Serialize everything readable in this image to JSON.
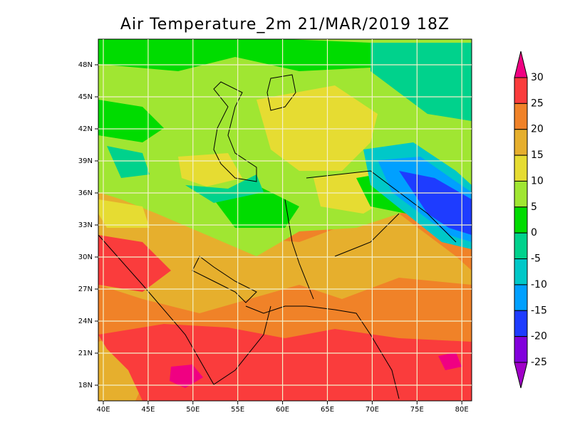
{
  "title": "Air Temperature_2m 21/MAR/2019 18Z",
  "lat_labels": [
    "48N",
    "45N",
    "42N",
    "39N",
    "36N",
    "33N",
    "30N",
    "27N",
    "24N",
    "21N",
    "18N"
  ],
  "lon_labels": [
    "40E",
    "45E",
    "50E",
    "55E",
    "60E",
    "65E",
    "70E",
    "75E",
    "80E"
  ],
  "colorbar": {
    "labels": [
      30,
      25,
      20,
      15,
      10,
      5,
      0,
      -5,
      -10,
      -15,
      -20,
      -25
    ],
    "colors": [
      "#f00082",
      "#fa3c3c",
      "#f08228",
      "#e6af2d",
      "#e6dc32",
      "#a0e632",
      "#00dc00",
      "#00d28c",
      "#00c8c8",
      "#00a0ff",
      "#1e3cff",
      "#8200dc",
      "#a000c8"
    ]
  }
}
